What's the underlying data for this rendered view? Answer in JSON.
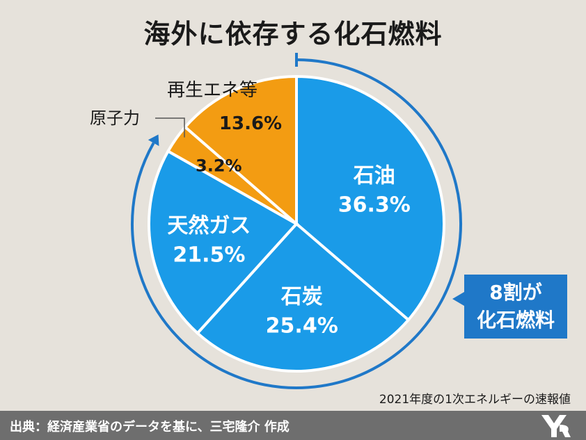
{
  "title": "海外に依存する化石燃料",
  "source_note": "2021年度の1次エネルギーの速報値",
  "footer_credit": "出典：経済産業省のデータを基に、三宅隆介 作成",
  "callout": {
    "line1": "8割が",
    "line2": "化石燃料"
  },
  "colors": {
    "fossil": "#1a9be8",
    "renewable": "#f39c12",
    "nuclear": "#f39c12",
    "arc": "#1f78c8",
    "background": "#e6e2db"
  },
  "chart_data": {
    "type": "pie",
    "title": "海外に依存する化石燃料",
    "slices": [
      {
        "label": "石油",
        "value": 36.3,
        "value_label": "36.3%",
        "color": "#1a9be8"
      },
      {
        "label": "石炭",
        "value": 25.4,
        "value_label": "25.4%",
        "color": "#1a9be8"
      },
      {
        "label": "天然ガス",
        "value": 21.5,
        "value_label": "21.5%",
        "color": "#1a9be8"
      },
      {
        "label": "原子力",
        "value": 3.2,
        "value_label": "3.2%",
        "color": "#f39c12"
      },
      {
        "label": "再生エネ等",
        "value": 13.6,
        "value_label": "13.6%",
        "color": "#f39c12"
      }
    ],
    "annotation": "8割が化石燃料",
    "start": "12 o'clock",
    "direction": "clockwise"
  }
}
